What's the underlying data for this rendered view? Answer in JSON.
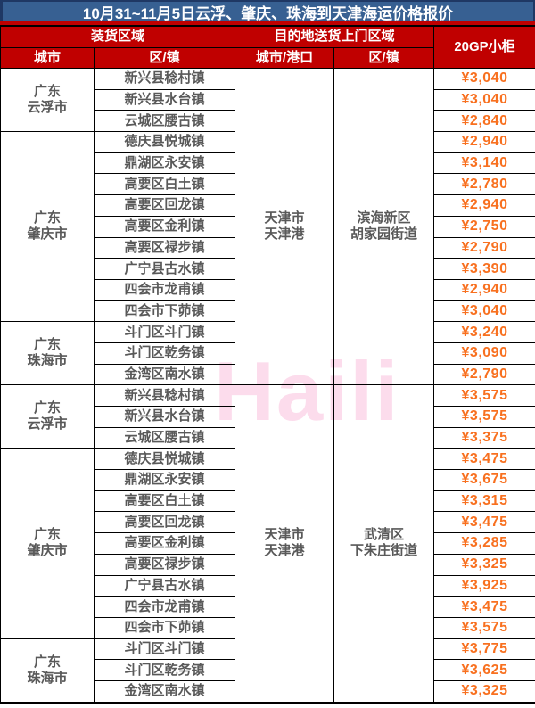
{
  "title": "10月31~11月5日云浮、肇庆、珠海到天津海运价格报价",
  "watermark": "Haili",
  "colors": {
    "title_bg": "#376092",
    "title_border": "#1f3864",
    "header_bg": "#c00000",
    "body_text": "#595959",
    "price_text": "#f8701f",
    "watermark": "#fbd3e7",
    "grid_line": "#000000"
  },
  "header": {
    "loading_area": "装货区域",
    "destination_area": "目的地送货上门区域",
    "container": "20GP小柜",
    "city": "城市",
    "district": "区/镇",
    "city_port": "城市/港口",
    "dest_district": "区/镇"
  },
  "sections": [
    {
      "destination_city": [
        "天津市",
        "天津港"
      ],
      "destination_district": [
        "滨海新区",
        "胡家园街道"
      ],
      "groups": [
        {
          "city": [
            "广东",
            "云浮市"
          ],
          "rows": [
            {
              "district": "新兴县稔村镇",
              "price": "¥3,040"
            },
            {
              "district": "新兴县水台镇",
              "price": "¥3,040"
            },
            {
              "district": "云城区腰古镇",
              "price": "¥2,840"
            }
          ]
        },
        {
          "city": [
            "广东",
            "肇庆市"
          ],
          "rows": [
            {
              "district": "德庆县悦城镇",
              "price": "¥2,940"
            },
            {
              "district": "鼎湖区永安镇",
              "price": "¥3,140"
            },
            {
              "district": "高要区白土镇",
              "price": "¥2,780"
            },
            {
              "district": "高要区回龙镇",
              "price": "¥2,940"
            },
            {
              "district": "高要区金利镇",
              "price": "¥2,750"
            },
            {
              "district": "高要区禄步镇",
              "price": "¥2,790"
            },
            {
              "district": "广宁县古水镇",
              "price": "¥3,390"
            },
            {
              "district": "四会市龙甫镇",
              "price": "¥2,940"
            },
            {
              "district": "四会市下茆镇",
              "price": "¥3,040"
            }
          ]
        },
        {
          "city": [
            "广东",
            "珠海市"
          ],
          "rows": [
            {
              "district": "斗门区斗门镇",
              "price": "¥3,240"
            },
            {
              "district": "斗门区乾务镇",
              "price": "¥3,090"
            },
            {
              "district": "金湾区南水镇",
              "price": "¥2,790"
            }
          ]
        }
      ]
    },
    {
      "destination_city": [
        "天津市",
        "天津港"
      ],
      "destination_district": [
        "武清区",
        "下朱庄街道"
      ],
      "groups": [
        {
          "city": [
            "广东",
            "云浮市"
          ],
          "rows": [
            {
              "district": "新兴县稔村镇",
              "price": "¥3,575"
            },
            {
              "district": "新兴县水台镇",
              "price": "¥3,575"
            },
            {
              "district": "云城区腰古镇",
              "price": "¥3,375"
            }
          ]
        },
        {
          "city": [
            "广东",
            "肇庆市"
          ],
          "rows": [
            {
              "district": "德庆县悦城镇",
              "price": "¥3,475"
            },
            {
              "district": "鼎湖区永安镇",
              "price": "¥3,675"
            },
            {
              "district": "高要区白土镇",
              "price": "¥3,315"
            },
            {
              "district": "高要区回龙镇",
              "price": "¥3,475"
            },
            {
              "district": "高要区金利镇",
              "price": "¥3,285"
            },
            {
              "district": "高要区禄步镇",
              "price": "¥3,325"
            },
            {
              "district": "广宁县古水镇",
              "price": "¥3,925"
            },
            {
              "district": "四会市龙甫镇",
              "price": "¥3,475"
            },
            {
              "district": "四会市下茆镇",
              "price": "¥3,575"
            }
          ]
        },
        {
          "city": [
            "广东",
            "珠海市"
          ],
          "rows": [
            {
              "district": "斗门区斗门镇",
              "price": "¥3,775"
            },
            {
              "district": "斗门区乾务镇",
              "price": "¥3,625"
            },
            {
              "district": "金湾区南水镇",
              "price": "¥3,325"
            }
          ]
        }
      ]
    }
  ]
}
